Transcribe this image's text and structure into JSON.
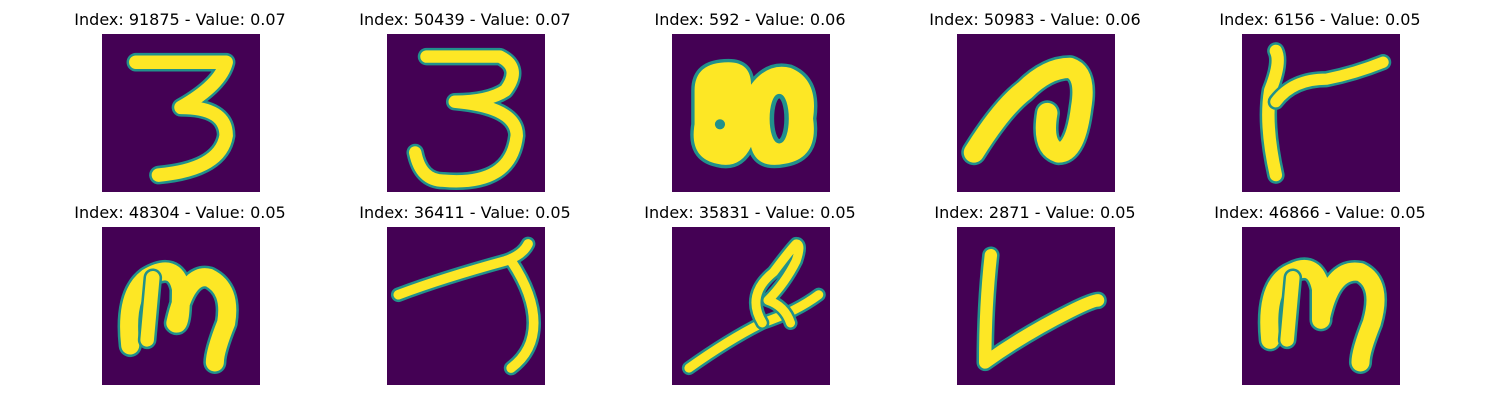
{
  "figure": {
    "cells": [
      {
        "title": "Index: 91875 - Value: 0.07",
        "glyph": "three-a"
      },
      {
        "title": "Index: 50439 - Value: 0.07",
        "glyph": "three-b"
      },
      {
        "title": "Index: 592 - Value: 0.06",
        "glyph": "blob"
      },
      {
        "title": "Index: 50983 - Value: 0.06",
        "glyph": "loop-n"
      },
      {
        "title": "Index: 6156 - Value: 0.05",
        "glyph": "t-shape"
      },
      {
        "title": "Index: 48304 - Value: 0.05",
        "glyph": "m-a"
      },
      {
        "title": "Index: 36411 - Value: 0.05",
        "glyph": "seven-hook"
      },
      {
        "title": "Index: 35831 - Value: 0.05",
        "glyph": "squiggle-stem"
      },
      {
        "title": "Index: 2871 - Value: 0.05",
        "glyph": "v-corner"
      },
      {
        "title": "Index: 46866 - Value: 0.05",
        "glyph": "m-b"
      }
    ],
    "colors": {
      "background": "#440154",
      "stroke_core": "#fde725",
      "stroke_edge": "#21918c"
    }
  }
}
